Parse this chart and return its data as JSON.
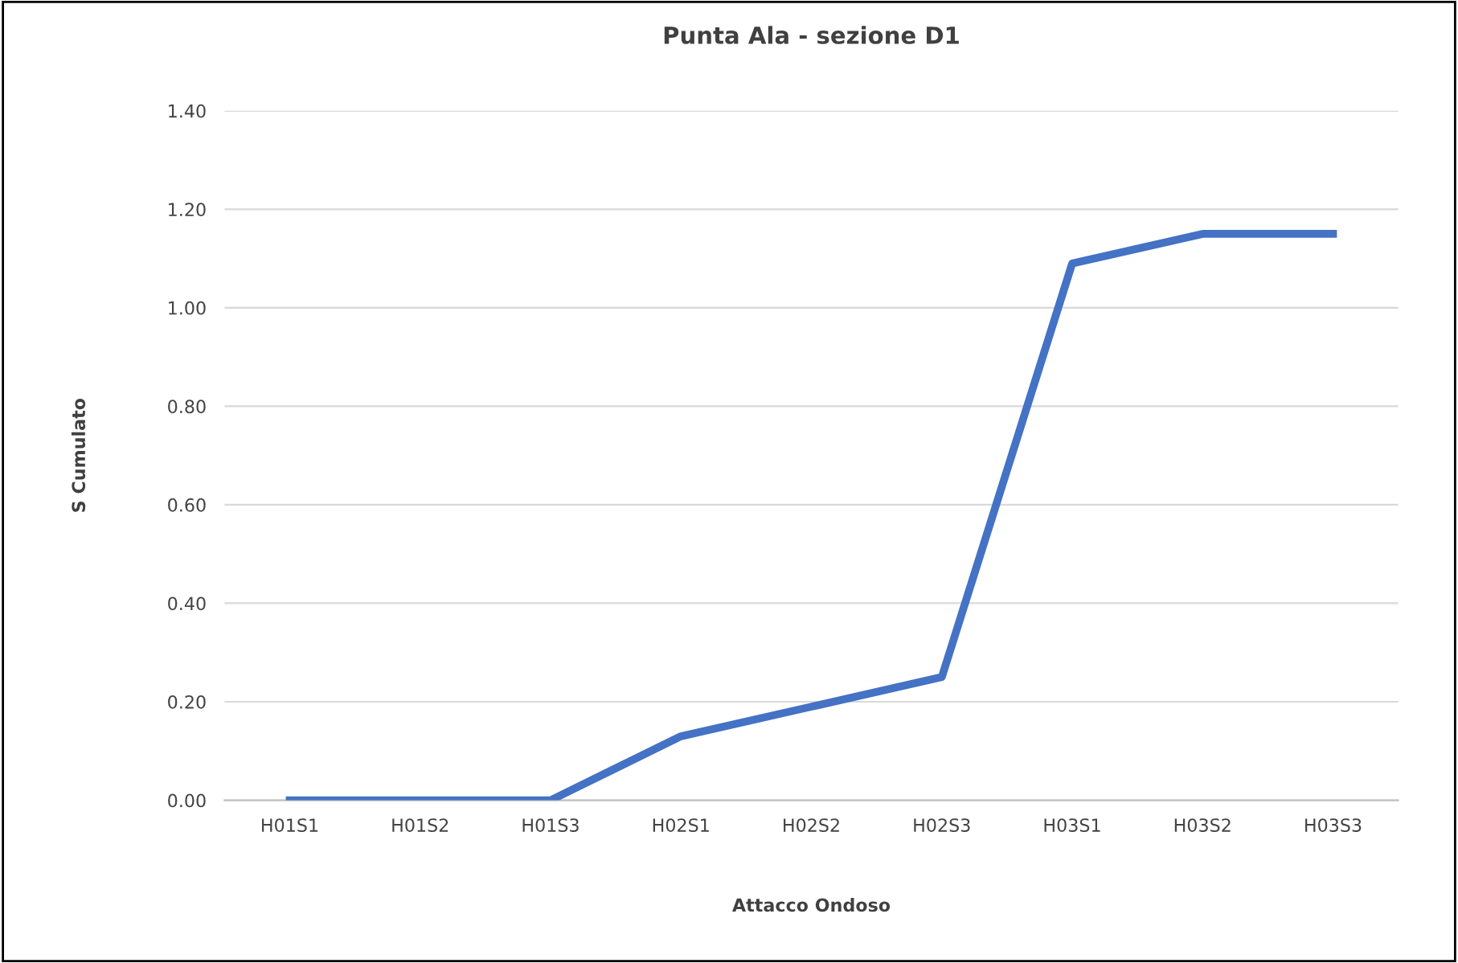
{
  "chart_data": {
    "type": "line",
    "title": "Punta Ala - sezione D1",
    "xlabel": "Attacco Ondoso",
    "ylabel": "S Cumulato",
    "categories": [
      "H01S1",
      "H01S2",
      "H01S3",
      "H02S1",
      "H02S2",
      "H02S3",
      "H03S1",
      "H03S2",
      "H03S3"
    ],
    "series": [
      {
        "color": "#4472c4",
        "values": [
          0,
          0,
          0,
          0.13,
          0.19,
          0.25,
          1.09,
          1.15,
          1.15
        ]
      }
    ],
    "ylim": [
      0,
      1.4
    ],
    "yticks": [
      {
        "value": 0,
        "label": "0.00"
      },
      {
        "value": 0.2,
        "label": "0.20"
      },
      {
        "value": 0.4,
        "label": "0.40"
      },
      {
        "value": 0.6,
        "label": "0.60"
      },
      {
        "value": 0.8,
        "label": "0.80"
      },
      {
        "value": 1.0,
        "label": "1.00"
      },
      {
        "value": 1.2,
        "label": "1.20"
      },
      {
        "value": 1.4,
        "label": "1.40"
      }
    ],
    "grid": "y",
    "legend": false,
    "marker": "none",
    "line_style": "solid"
  }
}
